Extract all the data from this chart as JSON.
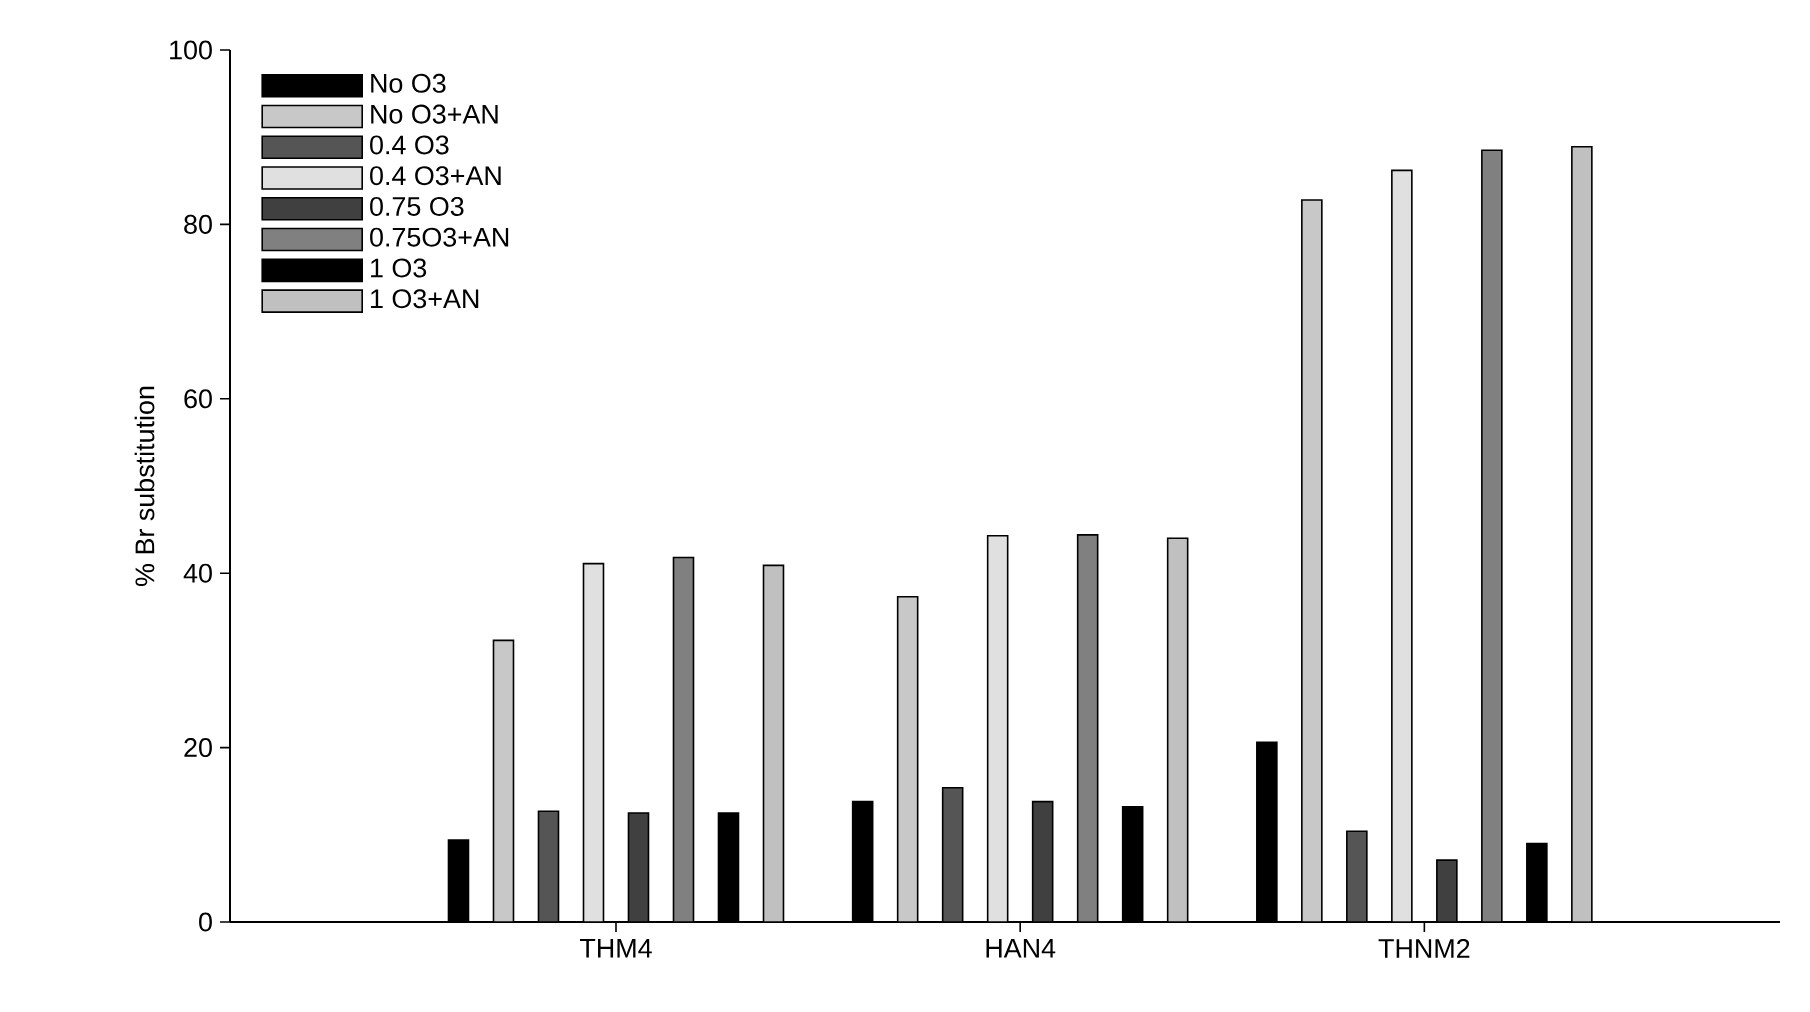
{
  "chart_data": {
    "type": "bar",
    "ylabel": "% Br substitution",
    "categories": [
      "THM4",
      "HAN4",
      "THNM2"
    ],
    "ylim": [
      0,
      100
    ],
    "yticks": [
      0,
      20,
      40,
      60,
      80,
      100
    ],
    "legend": "top left",
    "grid": false,
    "series": [
      {
        "name": "No O3",
        "color": "#000000",
        "values": [
          9.4,
          13.8,
          20.6
        ]
      },
      {
        "name": "No O3+AN",
        "color": "#c8c8c8",
        "values": [
          32.3,
          37.3,
          82.8
        ]
      },
      {
        "name": "0.4 O3",
        "color": "#555555",
        "values": [
          12.7,
          15.4,
          10.4
        ]
      },
      {
        "name": "0.4 O3+AN",
        "color": "#e0e0e0",
        "values": [
          41.1,
          44.3,
          86.2
        ]
      },
      {
        "name": "0.75 O3",
        "color": "#404040",
        "values": [
          12.5,
          13.8,
          7.1
        ]
      },
      {
        "name": "0.75O3+AN",
        "color": "#808080",
        "values": [
          41.8,
          44.4,
          88.5
        ]
      },
      {
        "name": "1 O3",
        "color": "#000000",
        "values": [
          12.5,
          13.2,
          9.0
        ]
      },
      {
        "name": "1 O3+AN",
        "color": "#c0c0c0",
        "values": [
          40.9,
          44.0,
          88.9
        ]
      }
    ]
  }
}
